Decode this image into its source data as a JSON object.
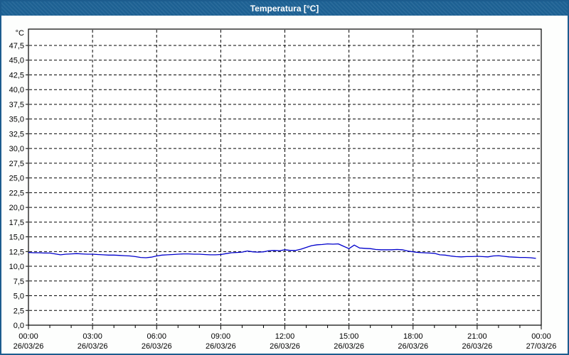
{
  "window": {
    "title": "Temperatura [°C]"
  },
  "colors": {
    "titlebar_bg": "#1E6396",
    "titlebar_text": "#FFFFFF",
    "window_border": "#1C5C8E",
    "plot_bg": "#FFFFFF",
    "grid_color": "#000000",
    "axis_color": "#000000",
    "line_color": "#0000CC",
    "label_color": "#000000"
  },
  "chart_data": {
    "type": "line",
    "title": "Temperatura [°C]",
    "xlabel": "",
    "ylabel": "°C",
    "ylim": [
      0,
      50
    ],
    "grid": "dashed",
    "legend": "none",
    "y_tick_values": [
      0,
      2.5,
      5,
      7.5,
      10,
      12.5,
      15,
      17.5,
      20,
      22.5,
      25,
      27.5,
      30,
      32.5,
      35,
      37.5,
      40,
      42.5,
      45,
      47.5
    ],
    "y_tick_labels": [
      "0,0",
      "2,5",
      "5,0",
      "7,5",
      "10,0",
      "12,5",
      "15,0",
      "17,5",
      "20,0",
      "22,5",
      "25,0",
      "27,5",
      "30,0",
      "32,5",
      "35,0",
      "37,5",
      "40,0",
      "42,5",
      "45,0",
      "47,5"
    ],
    "x_axis": {
      "unit": "time",
      "range_hours": [
        0,
        24
      ],
      "minor_tick_hours": 1,
      "major_ticks": [
        {
          "hour": 0,
          "time": "00:00",
          "date": "26/03/26"
        },
        {
          "hour": 3,
          "time": "03:00",
          "date": "26/03/26"
        },
        {
          "hour": 6,
          "time": "06:00",
          "date": "26/03/26"
        },
        {
          "hour": 9,
          "time": "09:00",
          "date": "26/03/26"
        },
        {
          "hour": 12,
          "time": "12:00",
          "date": "26/03/26"
        },
        {
          "hour": 15,
          "time": "15:00",
          "date": "26/03/26"
        },
        {
          "hour": 18,
          "time": "18:00",
          "date": "26/03/26"
        },
        {
          "hour": 21,
          "time": "21:00",
          "date": "26/03/26"
        },
        {
          "hour": 24,
          "time": "00:00",
          "date": "27/03/26"
        }
      ]
    },
    "series": [
      {
        "name": "Temperatura",
        "color": "#0000CC",
        "x_start_hour": 0,
        "x_step_hours": 0.25,
        "values": [
          12.35,
          12.3,
          12.3,
          12.25,
          12.25,
          12.1,
          11.95,
          12.05,
          12.1,
          12.15,
          12.1,
          12.05,
          12.05,
          12.0,
          11.95,
          11.9,
          11.9,
          11.85,
          11.8,
          11.75,
          11.65,
          11.5,
          11.45,
          11.55,
          11.75,
          11.9,
          11.95,
          12.0,
          12.05,
          12.1,
          12.1,
          12.05,
          12.05,
          12.0,
          11.95,
          11.95,
          12.0,
          12.15,
          12.3,
          12.35,
          12.4,
          12.6,
          12.45,
          12.4,
          12.45,
          12.65,
          12.7,
          12.65,
          12.8,
          12.7,
          12.7,
          12.9,
          13.2,
          13.5,
          13.65,
          13.7,
          13.8,
          13.75,
          13.8,
          13.4,
          13.0,
          13.6,
          13.1,
          13.05,
          13.0,
          12.85,
          12.8,
          12.8,
          12.8,
          12.85,
          12.8,
          12.6,
          12.45,
          12.35,
          12.3,
          12.25,
          12.2,
          11.95,
          11.9,
          11.75,
          11.65,
          11.6,
          11.65,
          11.65,
          11.7,
          11.65,
          11.6,
          11.75,
          11.8,
          11.7,
          11.6,
          11.55,
          11.5,
          11.5,
          11.45,
          11.35
        ]
      }
    ]
  }
}
